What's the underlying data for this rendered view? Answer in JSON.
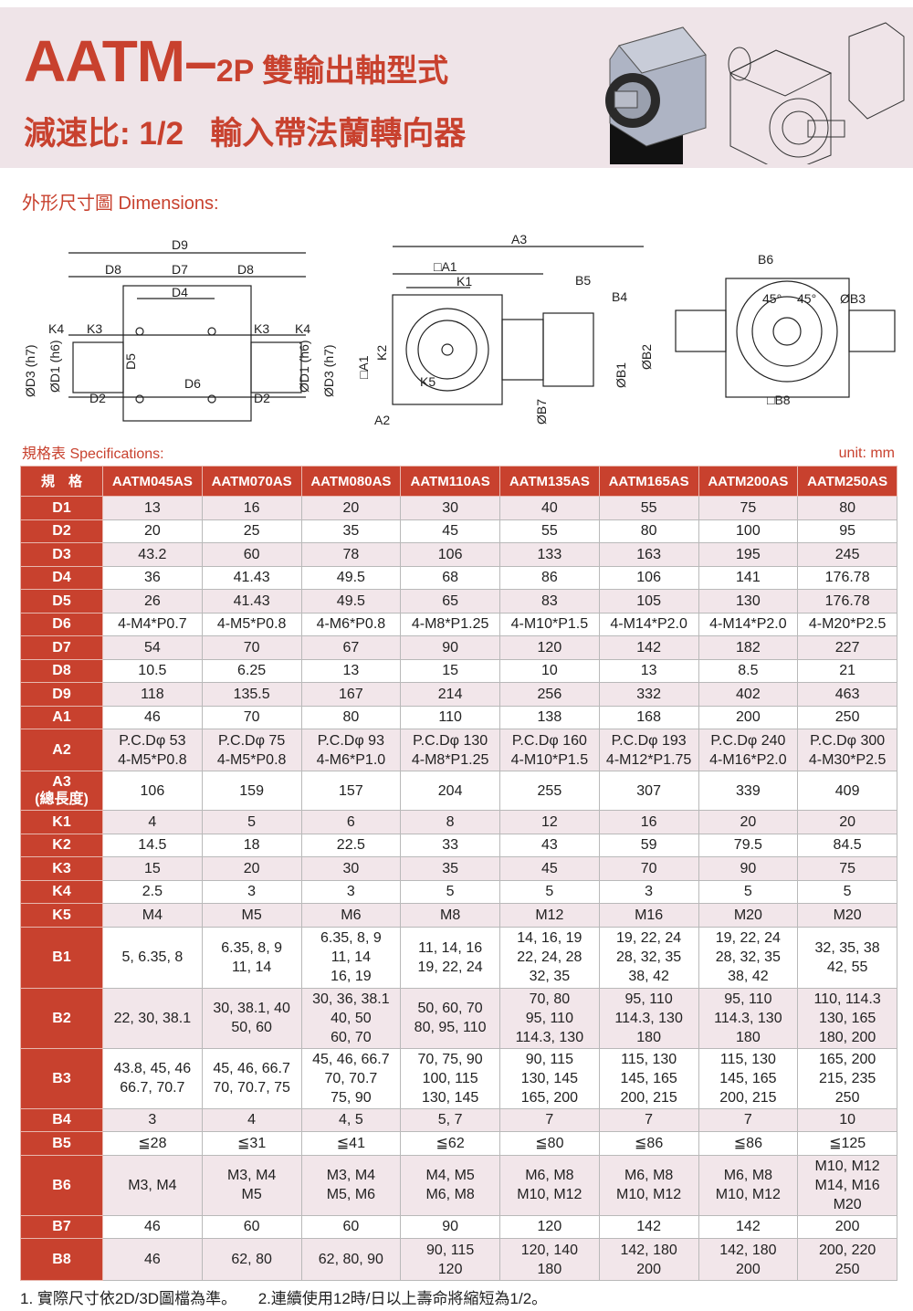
{
  "header": {
    "model": "AATM",
    "dash": "–",
    "suffix": "2P 雙輸出軸型式",
    "subtitle": "減速比: 1/2   輸入帶法蘭轉向器"
  },
  "dimensions_title": "外形尺寸圖 Dimensions:",
  "diagram_labels": {
    "front": [
      "D9",
      "D8",
      "D7",
      "D8",
      "D4",
      "K4",
      "K3",
      "K3",
      "K4",
      "D5",
      "D6",
      "D2",
      "D2",
      "ØD3 (h7)",
      "ØD1 (h6)",
      "ØD1 (h6)",
      "ØD3 (h7)"
    ],
    "side": [
      "A3",
      "□A1",
      "K1",
      "B5",
      "B4",
      "□A1",
      "K2",
      "K5",
      "A2",
      "ØB7",
      "ØB1",
      "ØB2"
    ],
    "end": [
      "B6",
      "45°",
      "45°",
      "ØB3",
      "□B8"
    ]
  },
  "specs_title": "規格表 Specifications:",
  "unit": "unit: mm",
  "specs": {
    "corner": "規　格",
    "models": [
      "AATM045AS",
      "AATM070AS",
      "AATM080AS",
      "AATM110AS",
      "AATM135AS",
      "AATM165AS",
      "AATM200AS",
      "AATM250AS"
    ],
    "rows": [
      {
        "label": "D1",
        "values": [
          "13",
          "16",
          "20",
          "30",
          "40",
          "55",
          "75",
          "80"
        ]
      },
      {
        "label": "D2",
        "values": [
          "20",
          "25",
          "35",
          "45",
          "55",
          "80",
          "100",
          "95"
        ]
      },
      {
        "label": "D3",
        "values": [
          "43.2",
          "60",
          "78",
          "106",
          "133",
          "163",
          "195",
          "245"
        ]
      },
      {
        "label": "D4",
        "values": [
          "36",
          "41.43",
          "49.5",
          "68",
          "86",
          "106",
          "141",
          "176.78"
        ]
      },
      {
        "label": "D5",
        "values": [
          "26",
          "41.43",
          "49.5",
          "65",
          "83",
          "105",
          "130",
          "176.78"
        ]
      },
      {
        "label": "D6",
        "values": [
          "4-M4*P0.7",
          "4-M5*P0.8",
          "4-M6*P0.8",
          "4-M8*P1.25",
          "4-M10*P1.5",
          "4-M14*P2.0",
          "4-M14*P2.0",
          "4-M20*P2.5"
        ]
      },
      {
        "label": "D7",
        "values": [
          "54",
          "70",
          "67",
          "90",
          "120",
          "142",
          "182",
          "227"
        ]
      },
      {
        "label": "D8",
        "values": [
          "10.5",
          "6.25",
          "13",
          "15",
          "10",
          "13",
          "8.5",
          "21"
        ]
      },
      {
        "label": "D9",
        "values": [
          "118",
          "135.5",
          "167",
          "214",
          "256",
          "332",
          "402",
          "463"
        ]
      },
      {
        "label": "A1",
        "values": [
          "46",
          "70",
          "80",
          "110",
          "138",
          "168",
          "200",
          "250"
        ]
      },
      {
        "label": "A2",
        "values": [
          "P.C.Dφ 53\n4-M5*P0.8",
          "P.C.Dφ 75\n4-M5*P0.8",
          "P.C.Dφ 93\n4-M6*P1.0",
          "P.C.Dφ 130\n4-M8*P1.25",
          "P.C.Dφ 160\n4-M10*P1.5",
          "P.C.Dφ 193\n4-M12*P1.75",
          "P.C.Dφ 240\n4-M16*P2.0",
          "P.C.Dφ 300\n4-M30*P2.5"
        ]
      },
      {
        "label": "A3\n(總長度)",
        "values": [
          "106",
          "159",
          "157",
          "204",
          "255",
          "307",
          "339",
          "409"
        ]
      },
      {
        "label": "K1",
        "values": [
          "4",
          "5",
          "6",
          "8",
          "12",
          "16",
          "20",
          "20"
        ]
      },
      {
        "label": "K2",
        "values": [
          "14.5",
          "18",
          "22.5",
          "33",
          "43",
          "59",
          "79.5",
          "84.5"
        ]
      },
      {
        "label": "K3",
        "values": [
          "15",
          "20",
          "30",
          "35",
          "45",
          "70",
          "90",
          "75"
        ]
      },
      {
        "label": "K4",
        "values": [
          "2.5",
          "3",
          "3",
          "5",
          "5",
          "3",
          "5",
          "5"
        ]
      },
      {
        "label": "K5",
        "values": [
          "M4",
          "M5",
          "M6",
          "M8",
          "M12",
          "M16",
          "M20",
          "M20"
        ]
      },
      {
        "label": "B1",
        "values": [
          "5, 6.35, 8",
          "6.35, 8, 9\n11, 14",
          "6.35, 8, 9\n11, 14\n16, 19",
          "11, 14, 16\n19, 22, 24",
          "14, 16, 19\n22, 24, 28\n32, 35",
          "19, 22, 24\n28, 32, 35\n38, 42",
          "19, 22, 24\n28, 32, 35\n38, 42",
          "32, 35, 38\n42, 55"
        ]
      },
      {
        "label": "B2",
        "values": [
          "22, 30, 38.1",
          "30, 38.1, 40\n50, 60",
          "30, 36, 38.1\n40, 50\n60, 70",
          "50, 60, 70\n80, 95, 110",
          "70, 80\n95, 110\n114.3, 130",
          "95, 110\n114.3, 130\n180",
          "95, 110\n114.3, 130\n180",
          "110, 114.3\n130, 165\n180, 200"
        ]
      },
      {
        "label": "B3",
        "values": [
          "43.8, 45, 46\n66.7, 70.7",
          "45, 46, 66.7\n70, 70.7, 75",
          "45, 46, 66.7\n70, 70.7\n75, 90",
          "70, 75, 90\n100, 115\n130, 145",
          "90, 115\n130, 145\n165, 200",
          "115, 130\n145, 165\n200, 215",
          "115, 130\n145, 165\n200, 215",
          "165, 200\n215, 235\n250"
        ]
      },
      {
        "label": "B4",
        "values": [
          "3",
          "4",
          "4, 5",
          "5, 7",
          "7",
          "7",
          "7",
          "10"
        ]
      },
      {
        "label": "B5",
        "values": [
          "≦28",
          "≦31",
          "≦41",
          "≦62",
          "≦80",
          "≦86",
          "≦86",
          "≦125"
        ]
      },
      {
        "label": "B6",
        "values": [
          "M3, M4",
          "M3, M4\nM5",
          "M3, M4\nM5, M6",
          "M4, M5\nM6, M8",
          "M6, M8\nM10, M12",
          "M6, M8\nM10, M12",
          "M6, M8\nM10, M12",
          "M10, M12\nM14, M16\nM20"
        ]
      },
      {
        "label": "B7",
        "values": [
          "46",
          "60",
          "60",
          "90",
          "120",
          "142",
          "142",
          "200"
        ]
      },
      {
        "label": "B8",
        "values": [
          "46",
          "62, 80",
          "62, 80, 90",
          "90, 115\n120",
          "120, 140\n180",
          "142, 180\n200",
          "142, 180\n200",
          "200, 220\n250"
        ]
      }
    ]
  },
  "footer": "1. 實際尺寸依2D/3D圖檔為準。     2.連續使用12時/日以上壽命將縮短為1/2。",
  "colors": {
    "accent": "#c8412e",
    "band": "#efe4e8",
    "row_alt": "#f2e6ea"
  }
}
